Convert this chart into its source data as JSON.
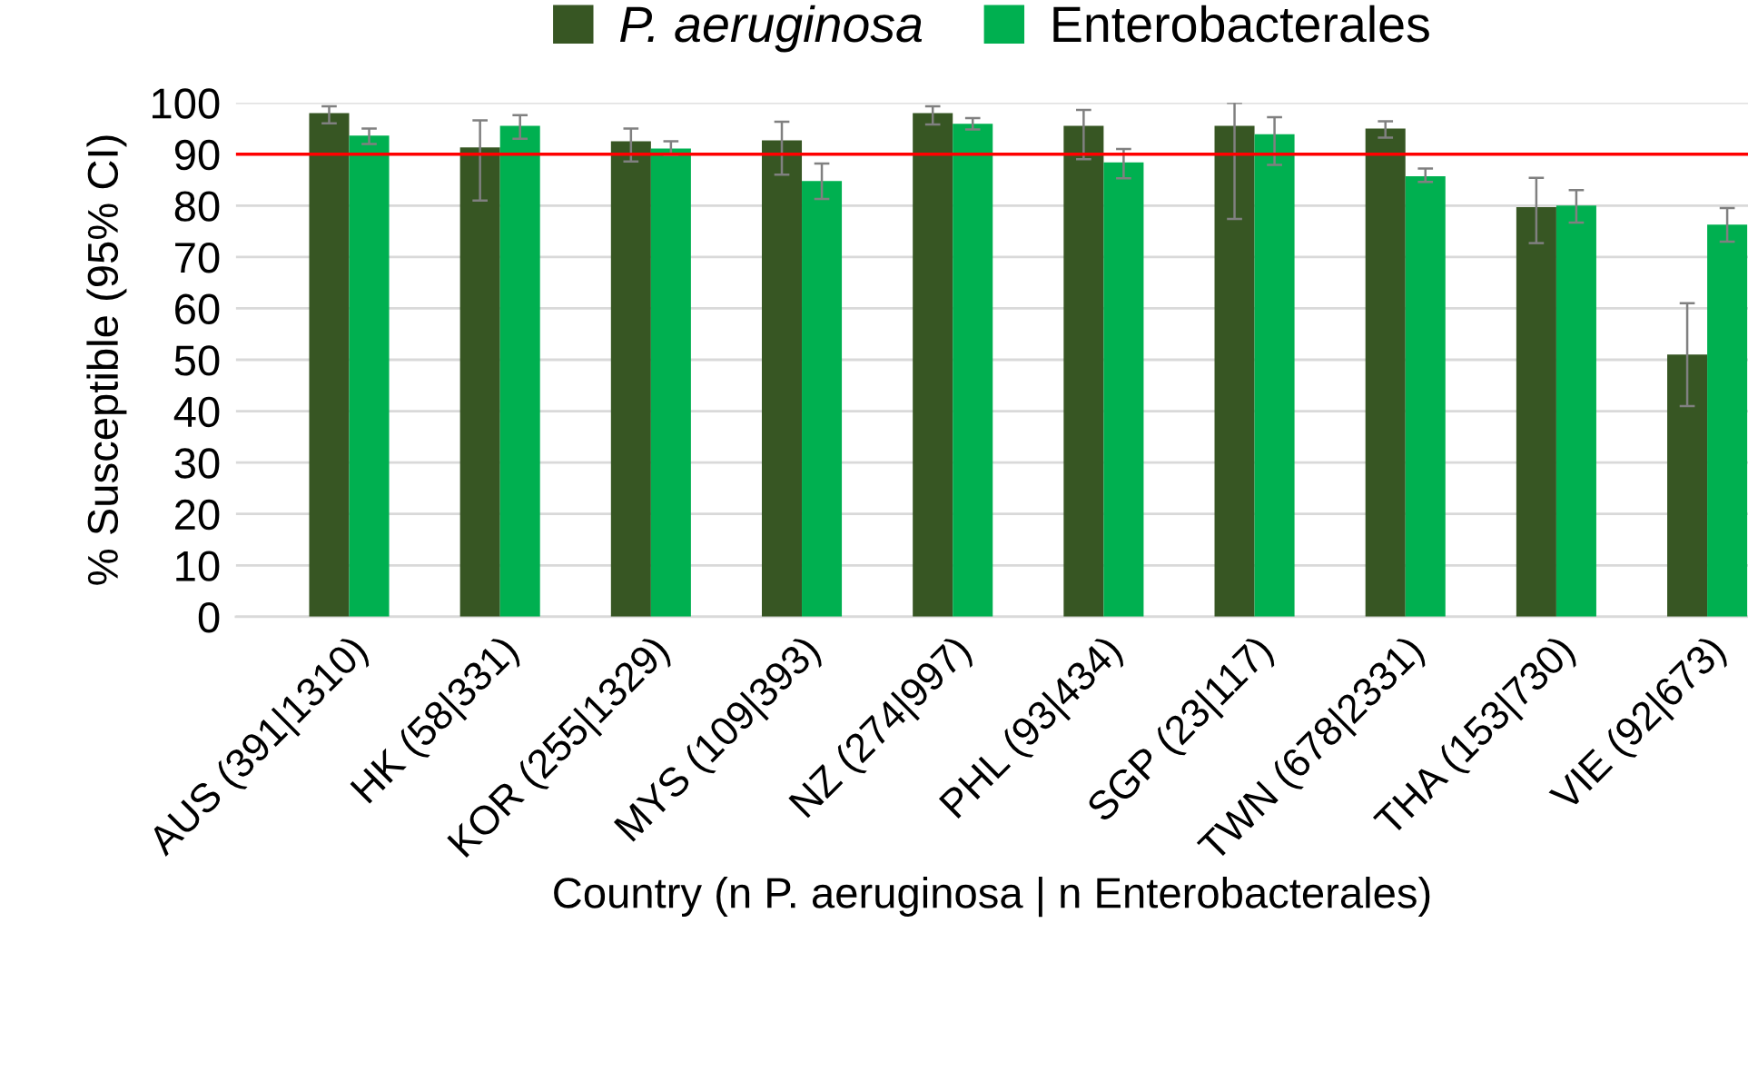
{
  "chart_data": {
    "type": "bar",
    "xlabel": "Country (n P. aeruginosa | n Enterobacterales)",
    "ylabel": "% Susceptible (95% CI)",
    "categories": [
      "AUS (391|1310)",
      "HK (58|331)",
      "KOR (255|1329)",
      "MYS (109|393)",
      "NZ (274|997)",
      "PHL (93|434)",
      "SGP (23|117)",
      "TWN (678|2331)",
      "THA (153|730)",
      "VIE (92|673)"
    ],
    "series": [
      {
        "name": "P. aeruginosa",
        "color": "#375623",
        "values": [
          98.0,
          91.3,
          92.5,
          92.7,
          98.0,
          95.5,
          95.5,
          95.0,
          79.7,
          51.0
        ],
        "errors": [
          [
            96,
            99.3
          ],
          [
            81,
            96.6
          ],
          [
            88.6,
            95
          ],
          [
            86,
            96.3
          ],
          [
            95.8,
            99.3
          ],
          [
            89,
            98.6
          ],
          [
            77.4,
            100
          ],
          [
            93.2,
            96.4
          ],
          [
            72.7,
            85.4
          ],
          [
            41,
            61
          ]
        ]
      },
      {
        "name": "Enterobacterales",
        "color": "#00b050",
        "values": [
          93.6,
          95.5,
          91.1,
          84.8,
          95.9,
          88.4,
          93.9,
          85.7,
          80.0,
          76.3
        ],
        "errors": [
          [
            92,
            95
          ],
          [
            93,
            97.6
          ],
          [
            89.8,
            92.5
          ],
          [
            81.3,
            88.2
          ],
          [
            94.8,
            97
          ],
          [
            85.3,
            91
          ],
          [
            87.9,
            97.2
          ],
          [
            84.6,
            87.2
          ],
          [
            76.7,
            83
          ],
          [
            73,
            79.5
          ]
        ]
      }
    ],
    "ylim": [
      0,
      100
    ],
    "yticks": [
      0,
      10,
      20,
      30,
      40,
      50,
      60,
      70,
      80,
      90,
      100
    ],
    "grid": "y",
    "legend": "top",
    "ref_lines": [
      {
        "axis": "y",
        "value": 90,
        "color": "#ff0000"
      }
    ]
  }
}
